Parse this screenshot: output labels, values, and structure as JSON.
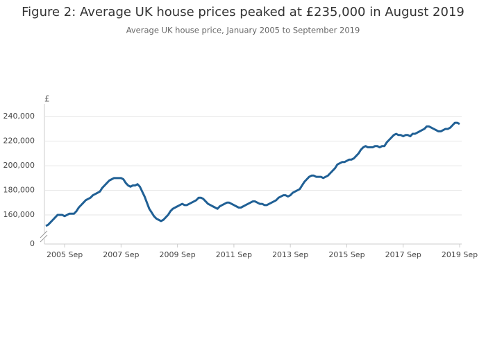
{
  "chart_data": {
    "type": "line",
    "title": "Figure 2: Average UK house prices peaked at £235,000 in August 2019",
    "subtitle": "Average UK house price, January 2005 to September 2019",
    "ylabel": "£",
    "x": [
      "2005 Jan",
      "2005 Feb",
      "2005 Mar",
      "2005 Apr",
      "2005 May",
      "2005 Jun",
      "2005 Jul",
      "2005 Aug",
      "2005 Sep",
      "2005 Oct",
      "2005 Nov",
      "2005 Dec",
      "2006 Jan",
      "2006 Feb",
      "2006 Mar",
      "2006 Apr",
      "2006 May",
      "2006 Jun",
      "2006 Jul",
      "2006 Aug",
      "2006 Sep",
      "2006 Oct",
      "2006 Nov",
      "2006 Dec",
      "2007 Jan",
      "2007 Feb",
      "2007 Mar",
      "2007 Apr",
      "2007 May",
      "2007 Jun",
      "2007 Jul",
      "2007 Aug",
      "2007 Sep",
      "2007 Oct",
      "2007 Nov",
      "2007 Dec",
      "2008 Jan",
      "2008 Feb",
      "2008 Mar",
      "2008 Apr",
      "2008 May",
      "2008 Jun",
      "2008 Jul",
      "2008 Aug",
      "2008 Sep",
      "2008 Oct",
      "2008 Nov",
      "2008 Dec",
      "2009 Jan",
      "2009 Feb",
      "2009 Mar",
      "2009 Apr",
      "2009 May",
      "2009 Jun",
      "2009 Jul",
      "2009 Aug",
      "2009 Sep",
      "2009 Oct",
      "2009 Nov",
      "2009 Dec",
      "2010 Jan",
      "2010 Feb",
      "2010 Mar",
      "2010 Apr",
      "2010 May",
      "2010 Jun",
      "2010 Jul",
      "2010 Aug",
      "2010 Sep",
      "2010 Oct",
      "2010 Nov",
      "2010 Dec",
      "2011 Jan",
      "2011 Feb",
      "2011 Mar",
      "2011 Apr",
      "2011 May",
      "2011 Jun",
      "2011 Jul",
      "2011 Aug",
      "2011 Sep",
      "2011 Oct",
      "2011 Nov",
      "2011 Dec",
      "2012 Jan",
      "2012 Feb",
      "2012 Mar",
      "2012 Apr",
      "2012 May",
      "2012 Jun",
      "2012 Jul",
      "2012 Aug",
      "2012 Sep",
      "2012 Oct",
      "2012 Nov",
      "2012 Dec",
      "2013 Jan",
      "2013 Feb",
      "2013 Mar",
      "2013 Apr",
      "2013 May",
      "2013 Jun",
      "2013 Jul",
      "2013 Aug",
      "2013 Sep",
      "2013 Oct",
      "2013 Nov",
      "2013 Dec",
      "2014 Jan",
      "2014 Feb",
      "2014 Mar",
      "2014 Apr",
      "2014 May",
      "2014 Jun",
      "2014 Jul",
      "2014 Aug",
      "2014 Sep",
      "2014 Oct",
      "2014 Nov",
      "2014 Dec",
      "2015 Jan",
      "2015 Feb",
      "2015 Mar",
      "2015 Apr",
      "2015 May",
      "2015 Jun",
      "2015 Jul",
      "2015 Aug",
      "2015 Sep",
      "2015 Oct",
      "2015 Nov",
      "2015 Dec",
      "2016 Jan",
      "2016 Feb",
      "2016 Mar",
      "2016 Apr",
      "2016 May",
      "2016 Jun",
      "2016 Jul",
      "2016 Aug",
      "2016 Sep",
      "2016 Oct",
      "2016 Nov",
      "2016 Dec",
      "2017 Jan",
      "2017 Feb",
      "2017 Mar",
      "2017 Apr",
      "2017 May",
      "2017 Jun",
      "2017 Jul",
      "2017 Aug",
      "2017 Sep",
      "2017 Oct",
      "2017 Nov",
      "2017 Dec",
      "2018 Jan",
      "2018 Feb",
      "2018 Mar",
      "2018 Apr",
      "2018 May",
      "2018 Jun",
      "2018 Jul",
      "2018 Aug",
      "2018 Sep",
      "2018 Oct",
      "2018 Nov",
      "2018 Dec",
      "2019 Jan",
      "2019 Feb",
      "2019 Mar",
      "2019 Apr",
      "2019 May",
      "2019 Jun",
      "2019 Jul",
      "2019 Aug",
      "2019 Sep"
    ],
    "series": [
      {
        "color": "#206095",
        "values": [
          151000,
          152000,
          154000,
          156000,
          158000,
          160000,
          160000,
          160000,
          159000,
          160000,
          161000,
          161000,
          161000,
          163000,
          166000,
          168000,
          170000,
          172000,
          173000,
          174000,
          176000,
          177000,
          178000,
          179000,
          182000,
          184000,
          186000,
          188000,
          189000,
          190000,
          190000,
          190000,
          190000,
          189000,
          186000,
          184000,
          183000,
          184000,
          184000,
          185000,
          183000,
          179000,
          175000,
          170000,
          165000,
          162000,
          159000,
          157000,
          156000,
          155000,
          156000,
          158000,
          160000,
          163000,
          165000,
          166000,
          167000,
          168000,
          169000,
          168000,
          168000,
          169000,
          170000,
          171000,
          172000,
          174000,
          174000,
          173000,
          171000,
          169000,
          168000,
          167000,
          166000,
          165000,
          167000,
          168000,
          169000,
          170000,
          170000,
          169000,
          168000,
          167000,
          166000,
          166000,
          167000,
          168000,
          169000,
          170000,
          171000,
          171000,
          170000,
          169000,
          169000,
          168000,
          168000,
          169000,
          170000,
          171000,
          172000,
          174000,
          175000,
          176000,
          176000,
          175000,
          176000,
          178000,
          179000,
          180000,
          181000,
          184000,
          187000,
          189000,
          191000,
          192000,
          192000,
          191000,
          191000,
          191000,
          190000,
          191000,
          192000,
          194000,
          196000,
          198000,
          201000,
          202000,
          203000,
          203000,
          204000,
          205000,
          205000,
          206000,
          208000,
          210000,
          213000,
          215000,
          216000,
          215000,
          215000,
          215000,
          216000,
          216000,
          215000,
          216000,
          216000,
          219000,
          221000,
          223000,
          225000,
          226000,
          225000,
          225000,
          224000,
          225000,
          225000,
          224000,
          226000,
          226000,
          227000,
          228000,
          229000,
          230000,
          232000,
          232000,
          231000,
          230000,
          229000,
          228000,
          228000,
          229000,
          230000,
          230000,
          231000,
          233000,
          235000,
          235000,
          234000
        ]
      }
    ],
    "xticks": [
      "2005 Sep",
      "2007 Sep",
      "2009 Sep",
      "2011 Sep",
      "2013 Sep",
      "2015 Sep",
      "2017 Sep",
      "2019 Sep"
    ],
    "ylim": [
      150000,
      250000
    ],
    "yticks": [
      0,
      {
        "value": 160000,
        "label": "160,000"
      },
      {
        "value": 180000,
        "label": "180,000"
      },
      {
        "value": 200000,
        "label": "200,000"
      },
      {
        "value": 220000,
        "label": "220,000"
      },
      {
        "value": 240000,
        "label": "240,000"
      }
    ],
    "grid": true
  }
}
